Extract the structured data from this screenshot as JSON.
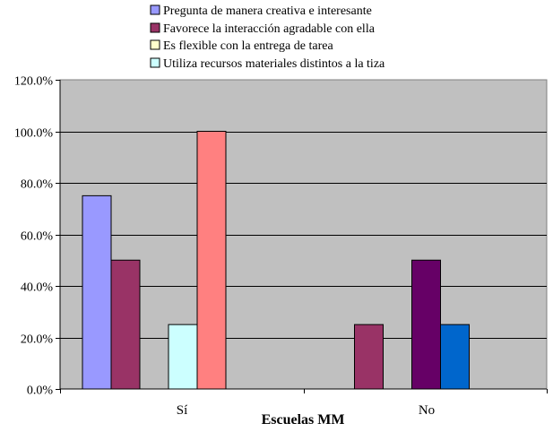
{
  "chart_data": {
    "type": "bar",
    "title": "",
    "xlabel": "Escuelas MM",
    "ylabel": "",
    "ylim": [
      0,
      1.2
    ],
    "y_ticks": [
      "0.0%",
      "20.0%",
      "40.0%",
      "60.0%",
      "80.0%",
      "100.0%",
      "120.0%"
    ],
    "y_tick_values": [
      0,
      0.2,
      0.4,
      0.6,
      0.8,
      1.0,
      1.2
    ],
    "categories": [
      "Sí",
      "No"
    ],
    "grid": true,
    "legend_position": "top",
    "plot_background": "#c0c0c0",
    "legend": [
      {
        "label": "Pregunta de manera creativa e interesante",
        "color": "#9999ff"
      },
      {
        "label": "Favorece la interacción agradable con ella",
        "color": "#993366"
      },
      {
        "label": "Es flexible con la entrega de tarea",
        "color": "#ffffcc"
      },
      {
        "label": "Utiliza recursos materiales distintos a la tiza",
        "color": "#ccffff"
      }
    ],
    "bars": [
      {
        "category": "Sí",
        "values": [
          0.75,
          0.5,
          0,
          0.25,
          1.0,
          null
        ],
        "colors": [
          "#9999ff",
          "#993366",
          "#ffffcc",
          "#ccffff",
          "#ff8080",
          "#660066"
        ]
      },
      {
        "category": "No",
        "values": [
          null,
          0.25,
          null,
          0.5,
          0.25,
          null
        ],
        "colors": [
          "#9999ff",
          "#993366",
          "#ffffcc",
          "#660066",
          "#0066cc",
          "#ccffff"
        ]
      }
    ]
  }
}
